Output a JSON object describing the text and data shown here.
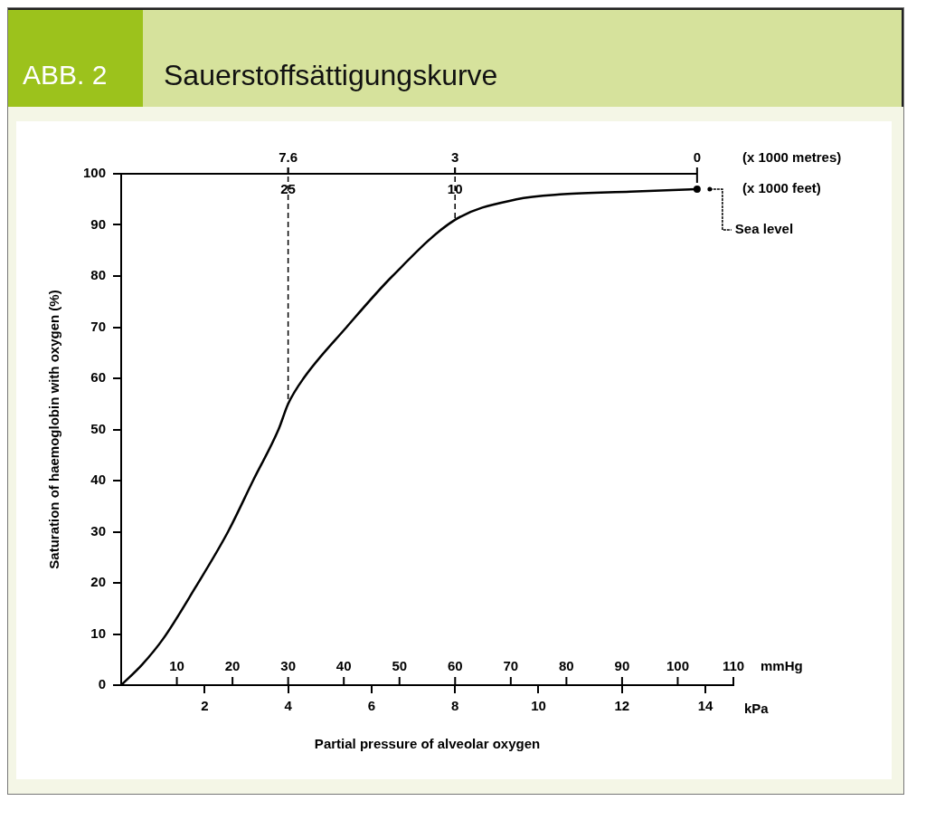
{
  "chart_data": {
    "type": "line",
    "title": "Sauerstoffsättigungskurve",
    "subtitle": "ABB. 2",
    "xlabel": "Partial pressure of alveolar oxygen",
    "ylabel": "Saturation of haemoglobin with oxygen (%)",
    "x2label": "mmHg",
    "x": [
      0,
      0.5,
      1,
      1.77,
      2.56,
      3.16,
      3.77,
      4,
      4.37,
      5.4,
      6.5,
      8,
      9.47,
      10.6,
      12.2,
      13.8
    ],
    "series": [
      {
        "color": "#000000",
        "values": [
          0,
          4,
          9,
          19,
          30,
          40,
          50,
          55,
          60,
          70,
          80,
          91,
          95,
          96,
          96.5,
          97
        ]
      }
    ],
    "xlim": [
      0,
      14.67
    ],
    "xticks": [
      2,
      4,
      6,
      8,
      10,
      12,
      14
    ],
    "x2lim": [
      0,
      110
    ],
    "x2ticks": [
      10,
      20,
      30,
      40,
      50,
      60,
      70,
      80,
      90,
      100,
      110
    ],
    "ylim": [
      0,
      100
    ],
    "yticks": [
      0,
      10,
      20,
      30,
      40,
      50,
      60,
      70,
      80,
      90,
      100
    ],
    "ref_lines": [
      {
        "axis": "x",
        "value": 4,
        "line_style": "dashed"
      },
      {
        "axis": "x",
        "value": 8,
        "line_style": "dashed"
      }
    ],
    "annotations": [
      "(x 1000 metres)",
      {
        "text": "7.6",
        "x": 4,
        "y": 100
      },
      {
        "text": "3",
        "x": 8,
        "y": 100
      },
      {
        "text": "0",
        "x": 13.8,
        "y": 97
      },
      "(x 1000 feet)",
      {
        "text": "25",
        "x": 4,
        "y": 100
      },
      {
        "text": "10",
        "x": 8,
        "y": 100
      },
      "Sea level",
      "kPa"
    ]
  }
}
